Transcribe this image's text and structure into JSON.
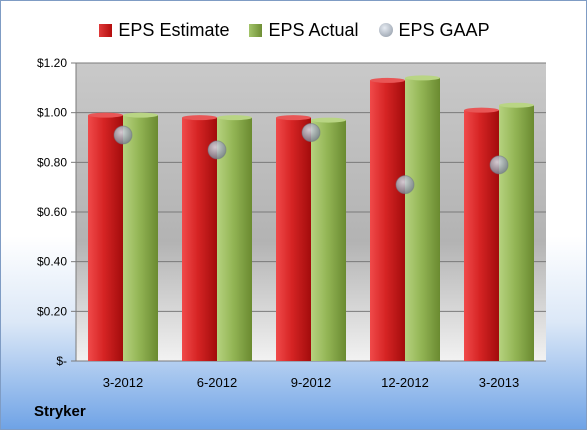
{
  "company": "Stryker",
  "legend": {
    "estimate": "EPS Estimate",
    "actual": "EPS Actual",
    "gaap": "EPS GAAP"
  },
  "colors": {
    "estimate": "#c81e1e",
    "actual": "#8db04e",
    "gaap": "#a9b2bf"
  },
  "chart_data": {
    "type": "bar",
    "categories": [
      "3-2012",
      "6-2012",
      "9-2012",
      "12-2012",
      "3-2013"
    ],
    "series": [
      {
        "name": "EPS Estimate",
        "kind": "bar",
        "values": [
          0.99,
          0.98,
          0.98,
          1.13,
          1.01
        ]
      },
      {
        "name": "EPS Actual",
        "kind": "bar",
        "values": [
          0.99,
          0.98,
          0.97,
          1.14,
          1.03
        ]
      },
      {
        "name": "EPS GAAP",
        "kind": "marker",
        "values": [
          0.91,
          0.85,
          0.92,
          0.71,
          0.79
        ]
      }
    ],
    "yticks": [
      {
        "value": 0,
        "label": "$-"
      },
      {
        "value": 0.2,
        "label": "$0.20"
      },
      {
        "value": 0.4,
        "label": "$0.40"
      },
      {
        "value": 0.6,
        "label": "$0.60"
      },
      {
        "value": 0.8,
        "label": "$0.80"
      },
      {
        "value": 1.0,
        "label": "$1.00"
      },
      {
        "value": 1.2,
        "label": "$1.20"
      }
    ],
    "ylim": [
      0,
      1.2
    ],
    "grid": true,
    "legend_position": "top"
  }
}
